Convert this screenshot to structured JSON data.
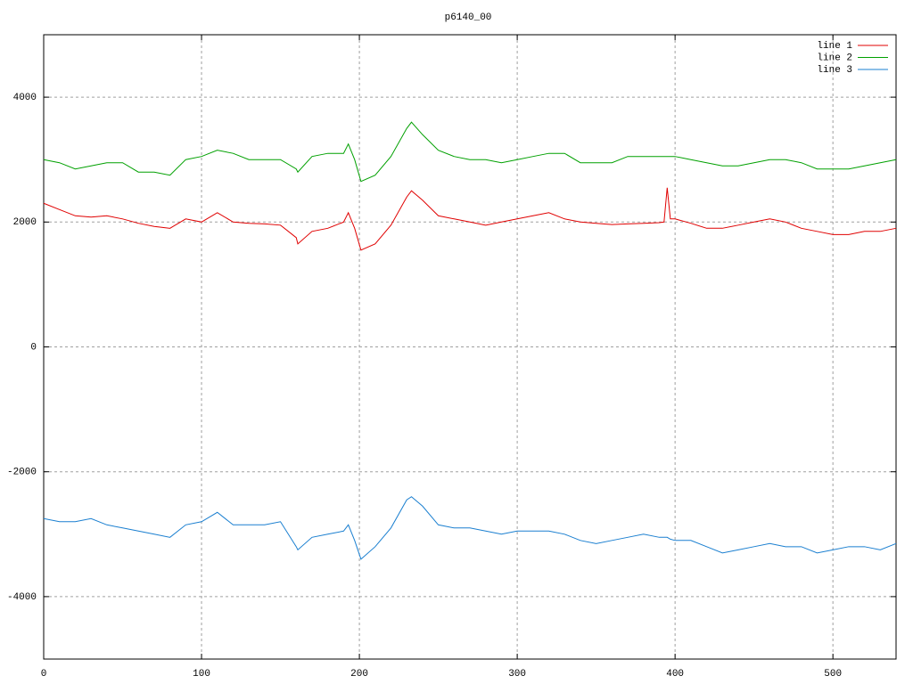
{
  "chart_data": {
    "type": "line",
    "title": "p6140_00",
    "x": [
      0,
      10,
      20,
      30,
      40,
      50,
      60,
      70,
      80,
      90,
      100,
      110,
      120,
      130,
      140,
      150,
      160,
      161,
      170,
      180,
      190,
      193,
      197,
      201,
      210,
      220,
      230,
      233,
      240,
      250,
      260,
      270,
      280,
      290,
      300,
      310,
      320,
      330,
      340,
      350,
      360,
      370,
      380,
      390,
      393,
      395,
      397,
      400,
      410,
      420,
      430,
      440,
      450,
      460,
      470,
      480,
      490,
      500,
      510,
      520,
      530,
      540
    ],
    "series": [
      {
        "name": "line 1",
        "color": "#e00000",
        "values": [
          2300,
          2200,
          2100,
          2080,
          2100,
          2050,
          1980,
          1930,
          1900,
          2050,
          2000,
          2150,
          2000,
          1980,
          1970,
          1950,
          1750,
          1650,
          1850,
          1900,
          2000,
          2150,
          1900,
          1550,
          1650,
          1950,
          2400,
          2500,
          2350,
          2100,
          2050,
          2000,
          1950,
          2000,
          2050,
          2100,
          2150,
          2050,
          2000,
          1980,
          1960,
          1970,
          1980,
          1990,
          2000,
          2550,
          2050,
          2050,
          1980,
          1900,
          1900,
          1950,
          2000,
          2050,
          2000,
          1900,
          1850,
          1800,
          1800,
          1850,
          1850,
          1900
        ]
      },
      {
        "name": "line 2",
        "color": "#00a000",
        "values": [
          3000,
          2950,
          2850,
          2900,
          2950,
          2950,
          2800,
          2800,
          2750,
          3000,
          3050,
          3150,
          3100,
          3000,
          3000,
          3000,
          2850,
          2800,
          3050,
          3100,
          3100,
          3250,
          3000,
          2650,
          2750,
          3050,
          3500,
          3600,
          3400,
          3150,
          3050,
          3000,
          3000,
          2950,
          3000,
          3050,
          3100,
          3100,
          2950,
          2950,
          2950,
          3050,
          3050,
          3050,
          3050,
          3050,
          3050,
          3050,
          3000,
          2950,
          2900,
          2900,
          2950,
          3000,
          3000,
          2950,
          2850,
          2850,
          2850,
          2900,
          2950,
          3000
        ]
      },
      {
        "name": "line 3",
        "color": "#1a7fd0",
        "values": [
          -2750,
          -2800,
          -2800,
          -2750,
          -2850,
          -2900,
          -2950,
          -3000,
          -3050,
          -2850,
          -2800,
          -2650,
          -2850,
          -2850,
          -2850,
          -2800,
          -3200,
          -3250,
          -3050,
          -3000,
          -2950,
          -2850,
          -3100,
          -3400,
          -3200,
          -2900,
          -2450,
          -2400,
          -2550,
          -2850,
          -2900,
          -2900,
          -2950,
          -3000,
          -2950,
          -2950,
          -2950,
          -3000,
          -3100,
          -3150,
          -3100,
          -3050,
          -3000,
          -3050,
          -3050,
          -3050,
          -3080,
          -3100,
          -3100,
          -3200,
          -3300,
          -3250,
          -3200,
          -3150,
          -3200,
          -3200,
          -3300,
          -3250,
          -3200,
          -3200,
          -3250,
          -3150
        ]
      }
    ],
    "xlim": [
      0,
      540
    ],
    "ylim": [
      -5000,
      5000
    ],
    "xticks": [
      0,
      100,
      200,
      300,
      400,
      500
    ],
    "yticks": [
      -4000,
      -2000,
      0,
      2000,
      4000
    ],
    "grid": true,
    "legend": "top-right"
  }
}
